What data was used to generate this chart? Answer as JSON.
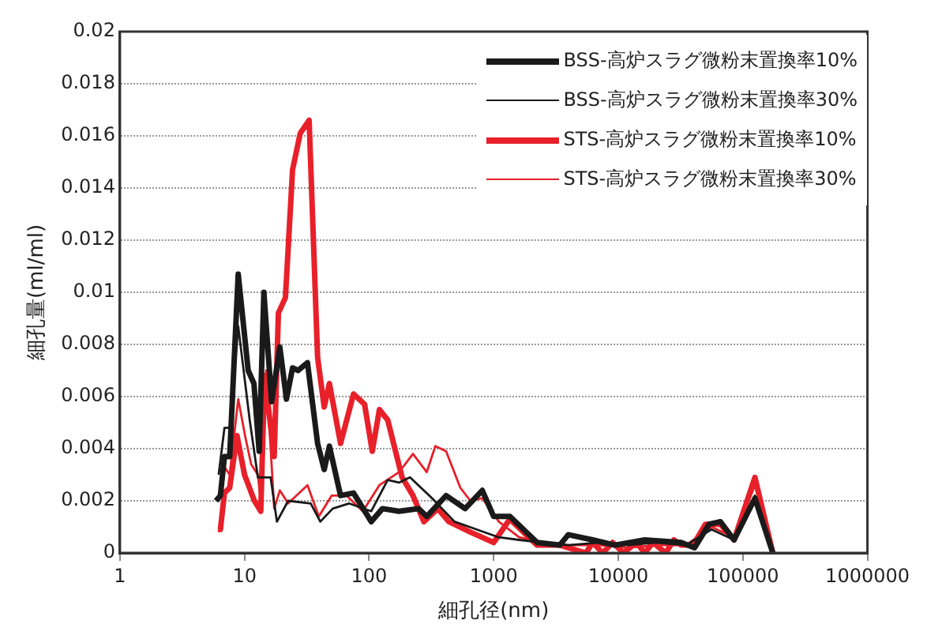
{
  "chart_data": {
    "type": "line",
    "xlabel": "細孔径(nm)",
    "ylabel": "細孔量(ml/ml)",
    "log": "x",
    "xlim": [
      1,
      1000000
    ],
    "xticks": [
      1,
      10,
      100,
      1000,
      10000,
      100000,
      1000000
    ],
    "ylim": [
      0,
      0.02
    ],
    "yticks": [
      0,
      0.002,
      0.004,
      0.006,
      0.008,
      0.01,
      0.012,
      0.014,
      0.016,
      0.018,
      0.02
    ],
    "grid": "y",
    "legend": "top right",
    "marker": "none",
    "line_style": "solid",
    "series": [
      {
        "name": "BSS-高炉スラグ微粉末置換率10%",
        "color": "#1a1a1a",
        "x": [
          5.9,
          6.4,
          6.9,
          7.6,
          8.9,
          10.7,
          11.9,
          13.1,
          14.3,
          16.5,
          19.2,
          21.7,
          24.3,
          26.9,
          32,
          38.6,
          43.6,
          48,
          59,
          75,
          104,
          128,
          174,
          250,
          290,
          415,
          590,
          810,
          1000,
          1350,
          2230,
          3390,
          3970,
          6240,
          9380,
          16300,
          32000,
          41000,
          53500,
          66000,
          85000,
          125000,
          174000
        ],
        "values": [
          0.002,
          0.0022,
          0.0037,
          0.0037,
          0.0107,
          0.007,
          0.0065,
          0.0039,
          0.01,
          0.0058,
          0.0079,
          0.0059,
          0.0071,
          0.007,
          0.0073,
          0.0042,
          0.0032,
          0.0041,
          0.0022,
          0.0023,
          0.0012,
          0.0017,
          0.0016,
          0.0017,
          0.0014,
          0.0022,
          0.0017,
          0.0024,
          0.0014,
          0.0014,
          0.0004,
          0.0003,
          0.0007,
          0.0005,
          0.0003,
          0.0005,
          0.0004,
          0.0002,
          0.0011,
          0.0012,
          0.0005,
          0.0021,
          0
        ]
      },
      {
        "name": "BSS-高炉スラグ微粉末置換率30%",
        "color": "#1a1a1a",
        "x": [
          6.2,
          6.9,
          7.6,
          8.9,
          11,
          12.8,
          16.2,
          18.2,
          22.4,
          34,
          40.6,
          51,
          69,
          104,
          141,
          174,
          213,
          320,
          485,
          730,
          1100,
          1600,
          2500,
          4000,
          7000,
          12000,
          20000,
          35000,
          56000,
          85000,
          125000,
          174000
        ],
        "values": [
          0.003,
          0.0048,
          0.0048,
          0.0087,
          0.0051,
          0.0029,
          0.0029,
          0.0012,
          0.002,
          0.0019,
          0.0012,
          0.0017,
          0.0019,
          0.0016,
          0.0028,
          0.0027,
          0.0029,
          0.0021,
          0.0012,
          0.0009,
          0.0006,
          0.0005,
          0.0004,
          0.0003,
          0.0004,
          0.0003,
          0.0004,
          0.0003,
          0.0009,
          0.0005,
          0.0022,
          0
        ]
      },
      {
        "name": "STS-高炉スラグ微粉末置換率10%",
        "color": "#e8202a",
        "x": [
          6.1,
          6.4,
          6.9,
          7.6,
          8.7,
          10,
          12,
          13.5,
          14.5,
          17.3,
          18.7,
          21.3,
          24.3,
          28,
          33,
          38.6,
          43.6,
          48,
          59,
          75,
          92,
          106,
          121,
          141,
          184,
          225,
          275,
          356,
          437,
          650,
          1000,
          1350,
          2230,
          3390,
          5500,
          6240,
          7500,
          9000,
          11000,
          14000,
          16300,
          19000,
          24000,
          28000,
          32000,
          40000,
          50000,
          66000,
          85000,
          125000,
          174000
        ],
        "values": [
          0.0009,
          0.0009,
          0.0023,
          0.0025,
          0.0045,
          0.003,
          0.002,
          0.0016,
          0.0068,
          0.0037,
          0.0092,
          0.0098,
          0.0147,
          0.0161,
          0.0166,
          0.0075,
          0.0056,
          0.0065,
          0.0042,
          0.0061,
          0.0057,
          0.0039,
          0.0055,
          0.0051,
          0.0029,
          0.0022,
          0.0012,
          0.0017,
          0.0012,
          0.0008,
          0.0004,
          0.0013,
          0.0003,
          0.0003,
          0,
          0.0004,
          0,
          0.0004,
          0,
          0.0004,
          0,
          0.0004,
          0,
          0.0005,
          0.0003,
          0.0003,
          0.0011,
          0.0011,
          0.0005,
          0.0029,
          0
        ]
      },
      {
        "name": "STS-高炉スラグ微粉末置換率30%",
        "color": "#e8202a",
        "x": [
          6.2,
          6.9,
          7.6,
          8.9,
          10.1,
          11.3,
          12.8,
          13.7,
          14.9,
          17.3,
          19.2,
          22.4,
          32,
          39.5,
          50,
          66,
          89,
          121,
          174,
          225,
          290,
          340,
          415,
          540,
          650,
          810,
          1100,
          1600,
          2500,
          4000,
          7000,
          12000,
          20000,
          35000,
          56000,
          85000,
          125000,
          174000
        ],
        "values": [
          0.002,
          0.0033,
          0.003,
          0.0059,
          0.0045,
          0.0034,
          0.003,
          0.0017,
          0.007,
          0.0017,
          0.0024,
          0.0019,
          0.0026,
          0.0014,
          0.0022,
          0.0022,
          0.0016,
          0.0026,
          0.0031,
          0.0038,
          0.0031,
          0.0041,
          0.0039,
          0.0025,
          0.002,
          0.0021,
          0.0012,
          0.0006,
          0.0004,
          0.0003,
          0.0003,
          0.0002,
          0.0003,
          0.0003,
          0.001,
          0.0006,
          0.0026,
          0
        ]
      }
    ]
  }
}
